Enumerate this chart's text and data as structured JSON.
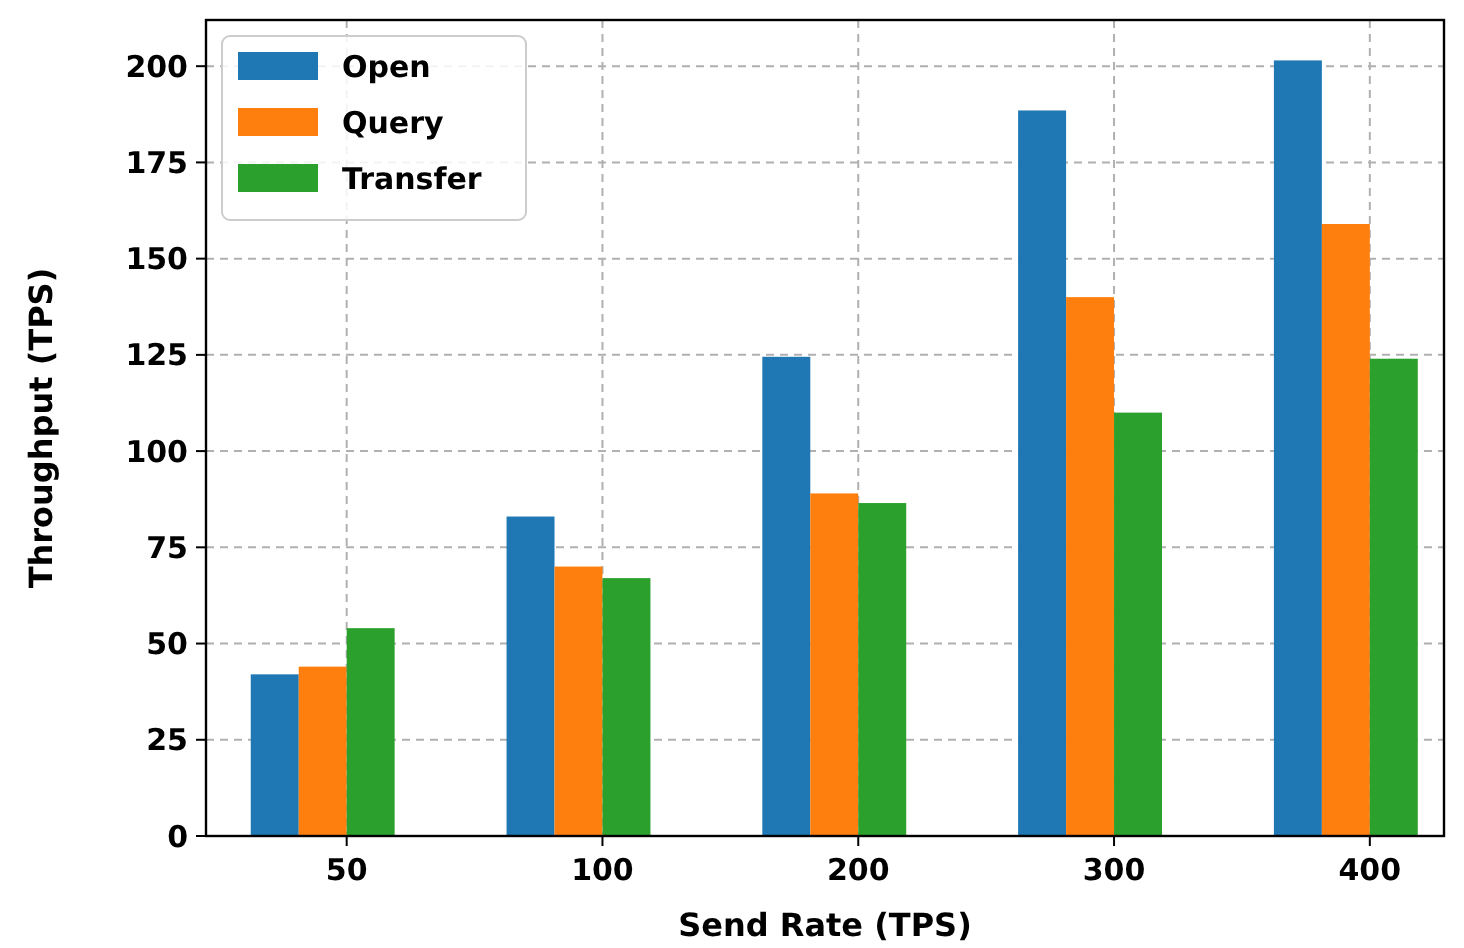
{
  "chart_data": {
    "type": "bar",
    "xlabel": "Send Rate (TPS)",
    "ylabel": "Throughput (TPS)",
    "categories": [
      "50",
      "100",
      "200",
      "300",
      "400"
    ],
    "series": [
      {
        "name": "Open",
        "color": "#1f77b4",
        "values": [
          42,
          83,
          124.5,
          188.5,
          201.5
        ]
      },
      {
        "name": "Query",
        "color": "#ff7f0e",
        "values": [
          44,
          70,
          89,
          140,
          159
        ]
      },
      {
        "name": "Transfer",
        "color": "#2ca02c",
        "values": [
          54,
          67,
          86.5,
          110,
          124
        ]
      }
    ],
    "ylim": [
      0,
      212
    ],
    "yticks": [
      0,
      25,
      50,
      75,
      100,
      125,
      150,
      175,
      200
    ],
    "grid": true,
    "legend": "top left"
  }
}
